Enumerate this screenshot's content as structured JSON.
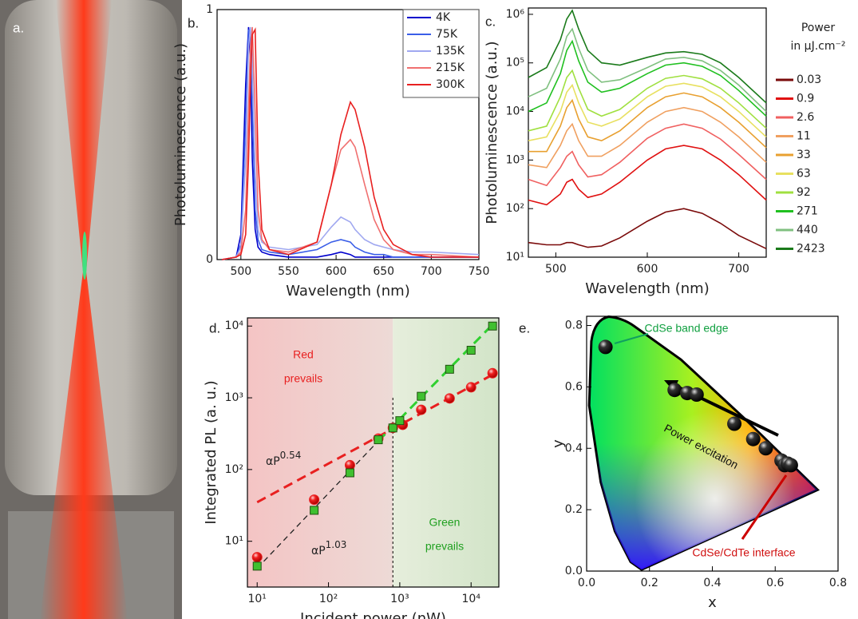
{
  "photo": {
    "label": "a."
  },
  "chart_data": [
    {
      "type": "line",
      "panel": "b.",
      "x_label": "Wavelength (nm)",
      "y_label": "Photoluminescence (a.u.)",
      "xlim": [
        475,
        750
      ],
      "ylim": [
        0,
        1
      ],
      "xticks": [
        500,
        550,
        600,
        650,
        700,
        750
      ],
      "yticks": [
        0,
        1
      ],
      "x": [
        480,
        495,
        500,
        505,
        508,
        510,
        512,
        515,
        518,
        522,
        530,
        550,
        580,
        595,
        605,
        615,
        620,
        630,
        640,
        650,
        660,
        680,
        700,
        750
      ],
      "series": [
        {
          "name": "4K",
          "color": "#0000cc",
          "values": [
            0,
            0.01,
            0.1,
            0.7,
            0.93,
            0.8,
            0.4,
            0.12,
            0.05,
            0.03,
            0.02,
            0.01,
            0.01,
            0.02,
            0.03,
            0.02,
            0.01,
            0.01,
            0.01,
            0.01,
            0.01,
            0.01,
            0.01,
            0.01
          ]
        },
        {
          "name": "75K",
          "color": "#3a5ee8",
          "values": [
            0,
            0.01,
            0.06,
            0.55,
            0.92,
            0.9,
            0.6,
            0.2,
            0.08,
            0.04,
            0.03,
            0.02,
            0.04,
            0.07,
            0.08,
            0.07,
            0.05,
            0.03,
            0.02,
            0.02,
            0.01,
            0.01,
            0.01,
            0.01
          ]
        },
        {
          "name": "135K",
          "color": "#a0a8f0",
          "values": [
            0,
            0.01,
            0.05,
            0.4,
            0.85,
            0.93,
            0.8,
            0.35,
            0.12,
            0.07,
            0.05,
            0.04,
            0.06,
            0.13,
            0.17,
            0.15,
            0.12,
            0.08,
            0.06,
            0.05,
            0.04,
            0.03,
            0.03,
            0.02
          ]
        },
        {
          "name": "215K",
          "color": "#f07070",
          "values": [
            0,
            0.01,
            0.03,
            0.2,
            0.6,
            0.85,
            0.93,
            0.6,
            0.2,
            0.08,
            0.04,
            0.03,
            0.07,
            0.3,
            0.44,
            0.48,
            0.45,
            0.3,
            0.16,
            0.08,
            0.04,
            0.02,
            0.02,
            0.01
          ]
        },
        {
          "name": "300K",
          "color": "#e82020",
          "values": [
            0,
            0.01,
            0.02,
            0.1,
            0.4,
            0.7,
            0.9,
            0.92,
            0.4,
            0.12,
            0.04,
            0.02,
            0.07,
            0.3,
            0.5,
            0.63,
            0.6,
            0.45,
            0.25,
            0.12,
            0.06,
            0.02,
            0.01,
            0.01
          ]
        }
      ]
    },
    {
      "type": "line",
      "panel": "c.",
      "x_label": "Wavelength (nm)",
      "y_label": "Photoluminescence (a.u.)",
      "ylog": true,
      "legend_title": [
        "Power",
        "in µJ.cm⁻²"
      ],
      "xlim": [
        470,
        730
      ],
      "ylim": [
        10,
        1350000
      ],
      "xticks": [
        500,
        600,
        700
      ],
      "yticks": [
        {
          "value": 10,
          "label": "10¹"
        },
        {
          "value": 100,
          "label": "10²"
        },
        {
          "value": 1000,
          "label": "10³"
        },
        {
          "value": 10000,
          "label": "10⁴"
        },
        {
          "value": 100000,
          "label": "10⁵"
        },
        {
          "value": 1000000,
          "label": "10⁶"
        }
      ],
      "x": [
        470,
        490,
        505,
        512,
        518,
        525,
        535,
        550,
        570,
        600,
        620,
        640,
        660,
        680,
        700,
        730
      ],
      "series": [
        {
          "name": "0.03",
          "color": "#7a0a0a",
          "values": [
            20,
            18,
            18,
            20,
            20,
            18,
            16,
            17,
            25,
            55,
            85,
            100,
            80,
            50,
            28,
            15
          ]
        },
        {
          "name": "0.9",
          "color": "#e01010",
          "values": [
            150,
            120,
            200,
            350,
            400,
            250,
            170,
            200,
            350,
            1000,
            1700,
            2000,
            1700,
            1000,
            500,
            150
          ]
        },
        {
          "name": "2.6",
          "color": "#f06060",
          "values": [
            400,
            300,
            700,
            1200,
            1500,
            800,
            450,
            500,
            900,
            2800,
            4500,
            5500,
            4500,
            2700,
            1300,
            400
          ]
        },
        {
          "name": "11",
          "color": "#f0a060",
          "values": [
            800,
            700,
            2000,
            4000,
            5500,
            2500,
            1200,
            1200,
            2000,
            6000,
            10000,
            12000,
            10000,
            6000,
            3000,
            900
          ]
        },
        {
          "name": "33",
          "color": "#e8a030",
          "values": [
            1500,
            1500,
            5000,
            12000,
            17000,
            7000,
            3000,
            2500,
            4000,
            12000,
            20000,
            24000,
            20000,
            12000,
            6000,
            1800
          ]
        },
        {
          "name": "63",
          "color": "#e8e060",
          "values": [
            2500,
            3000,
            10000,
            25000,
            35000,
            15000,
            6000,
            5000,
            7000,
            20000,
            33000,
            38000,
            32000,
            20000,
            10000,
            3000
          ]
        },
        {
          "name": "92",
          "color": "#a0e040",
          "values": [
            4000,
            5000,
            20000,
            50000,
            70000,
            30000,
            11000,
            8000,
            11000,
            30000,
            48000,
            55000,
            47000,
            30000,
            15000,
            4500
          ]
        },
        {
          "name": "271",
          "color": "#20c020",
          "values": [
            10000,
            15000,
            60000,
            180000,
            280000,
            110000,
            40000,
            25000,
            30000,
            60000,
            90000,
            100000,
            85000,
            55000,
            27000,
            8000
          ]
        },
        {
          "name": "440",
          "color": "#80c080",
          "values": [
            20000,
            30000,
            120000,
            350000,
            500000,
            200000,
            70000,
            40000,
            45000,
            80000,
            120000,
            130000,
            110000,
            70000,
            35000,
            10000
          ]
        },
        {
          "name": "2423",
          "color": "#1a7a1a",
          "values": [
            50000,
            80000,
            300000,
            800000,
            1200000,
            500000,
            180000,
            100000,
            90000,
            130000,
            160000,
            170000,
            150000,
            100000,
            50000,
            15000
          ]
        }
      ]
    },
    {
      "type": "scatter",
      "panel": "d.",
      "x_label": "Incident power (nW)",
      "y_label": "Integrated PL (a. u.)",
      "xlog": true,
      "ylog": true,
      "xlim": [
        7.3,
        24500
      ],
      "ylim": [
        2.3,
        13000
      ],
      "xticks": [
        {
          "value": 10,
          "label": "10¹"
        },
        {
          "value": 100,
          "label": "10²"
        },
        {
          "value": 1000,
          "label": "10³"
        },
        {
          "value": 10000,
          "label": "10⁴"
        }
      ],
      "yticks": [
        {
          "value": 10,
          "label": "10¹"
        },
        {
          "value": 100,
          "label": "10²"
        },
        {
          "value": 1000,
          "label": "10³"
        },
        {
          "value": 10000,
          "label": "10⁴"
        }
      ],
      "divider_x": 800,
      "series": [
        {
          "color": "#e82020",
          "marker": "circle",
          "x": [
            10,
            63,
            200,
            500,
            800,
            1100,
            2000,
            5000,
            10000,
            20000
          ],
          "values": [
            6,
            38,
            115,
            270,
            380,
            420,
            680,
            980,
            1400,
            2200
          ]
        },
        {
          "color": "#40c030",
          "marker": "square",
          "x": [
            10,
            63,
            200,
            500,
            800,
            1000,
            2000,
            5000,
            10000,
            20000
          ],
          "values": [
            4.5,
            27,
            90,
            260,
            380,
            480,
            1050,
            2500,
            4600,
            10000
          ]
        }
      ],
      "fits": [
        {
          "color": "#e82020",
          "x": [
            10,
            20000
          ],
          "values": [
            35,
            2100
          ],
          "label": {
            "text": "αP",
            "sup": "0.54"
          }
        },
        {
          "color": "#222222",
          "x": [
            10,
            500
          ],
          "values": [
            4.2,
            250
          ]
        },
        {
          "color": "#30d030",
          "x": [
            500,
            20000
          ],
          "values": [
            250,
            10500
          ],
          "label": {
            "text": "αP",
            "sup": "1.03"
          }
        }
      ],
      "annotations": [
        {
          "lines": [
            "Red",
            "prevails"
          ],
          "color": "#e82020"
        },
        {
          "lines": [
            "Green",
            "prevails"
          ],
          "color": "#20a020"
        }
      ]
    },
    {
      "type": "scatter",
      "panel": "e.",
      "x_label": "x",
      "y_label": "y",
      "xlim": [
        0,
        0.8
      ],
      "ylim": [
        0,
        0.83
      ],
      "xticks": [
        {
          "value": 0,
          "label": "0.0"
        },
        0.2,
        0.4,
        0.6,
        0.8
      ],
      "yticks": [
        {
          "value": 0,
          "label": "0.0"
        },
        0.2,
        0.4,
        0.6,
        0.8
      ],
      "series": [
        {
          "color": "#111111",
          "marker": "sphere",
          "x": [
            0.06,
            0.28,
            0.32,
            0.35,
            0.47,
            0.53,
            0.57,
            0.62,
            0.63,
            0.64,
            0.65
          ],
          "values": [
            0.73,
            0.59,
            0.58,
            0.575,
            0.48,
            0.43,
            0.4,
            0.36,
            0.345,
            0.35,
            0.345
          ]
        }
      ],
      "annotations": [
        {
          "lines": [
            "CdSe band edge"
          ],
          "color": "#10a040"
        },
        {
          "lines": [
            "Power excitation"
          ],
          "color": "#111111"
        },
        {
          "lines": [
            "CdSe/CdTe interface"
          ],
          "color": "#d01010"
        }
      ]
    }
  ]
}
